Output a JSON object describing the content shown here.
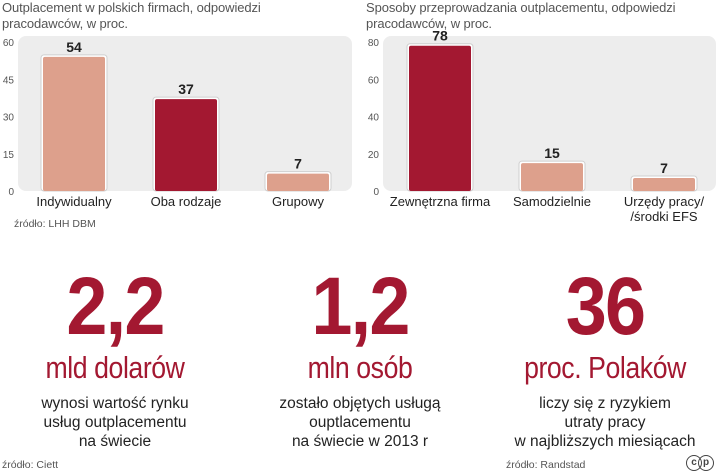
{
  "charts": [
    {
      "title": "Outplacement w polskich firmach, odpowiedzi pracodawców, w proc.",
      "source": "źródło: LHH DBM",
      "chart_data": {
        "type": "bar",
        "categories": [
          "Indywidualny",
          "Oba rodzaje",
          "Grupowy"
        ],
        "values": [
          54,
          37,
          7
        ],
        "ylim": [
          0,
          60
        ],
        "yticks": [
          0,
          15,
          30,
          45,
          60
        ],
        "bar_colors": [
          "#dda08c",
          "#a31831",
          "#dda08c"
        ],
        "grid": false
      }
    },
    {
      "title": "Sposoby przeprowadzania outplacementu, odpowiedzi pracodawców, w proc.",
      "source": "",
      "chart_data": {
        "type": "bar",
        "categories": [
          "Zewnętrzna firma",
          "Samodzielnie",
          "Urzędy pracy/ /środki EFS"
        ],
        "category_lines": [
          [
            "Zewnętrzna firma"
          ],
          [
            "Samodzielnie"
          ],
          [
            "Urzędy pracy/",
            "/środki EFS"
          ]
        ],
        "values": [
          78,
          15,
          7
        ],
        "ylim": [
          0,
          80
        ],
        "yticks": [
          0,
          20,
          40,
          60,
          80
        ],
        "bar_colors": [
          "#a31831",
          "#dda08c",
          "#dda08c"
        ],
        "grid": false
      }
    }
  ],
  "stats": [
    {
      "big": "2,2",
      "unit": "mld dolarów",
      "desc": [
        "wynosi wartość rynku",
        "usług outplacementu",
        "na świecie"
      ]
    },
    {
      "big": "1,2",
      "unit": "mln osób",
      "desc": [
        "zostało objętych usługą",
        "ouptlacementu",
        "na świecie w 2013 r"
      ]
    },
    {
      "big": "36",
      "unit": "proc. Polaków",
      "desc": [
        "liczy się z ryzykiem",
        "utraty pracy",
        "w najbliższych miesiącach"
      ]
    }
  ],
  "sources_bottom": {
    "left": "źródło: Ciett",
    "right": "źródło: Randstad"
  },
  "colors": {
    "accent": "#a31831",
    "light_bar": "#dda08c",
    "panel": "#ededed"
  },
  "logo": "c p"
}
